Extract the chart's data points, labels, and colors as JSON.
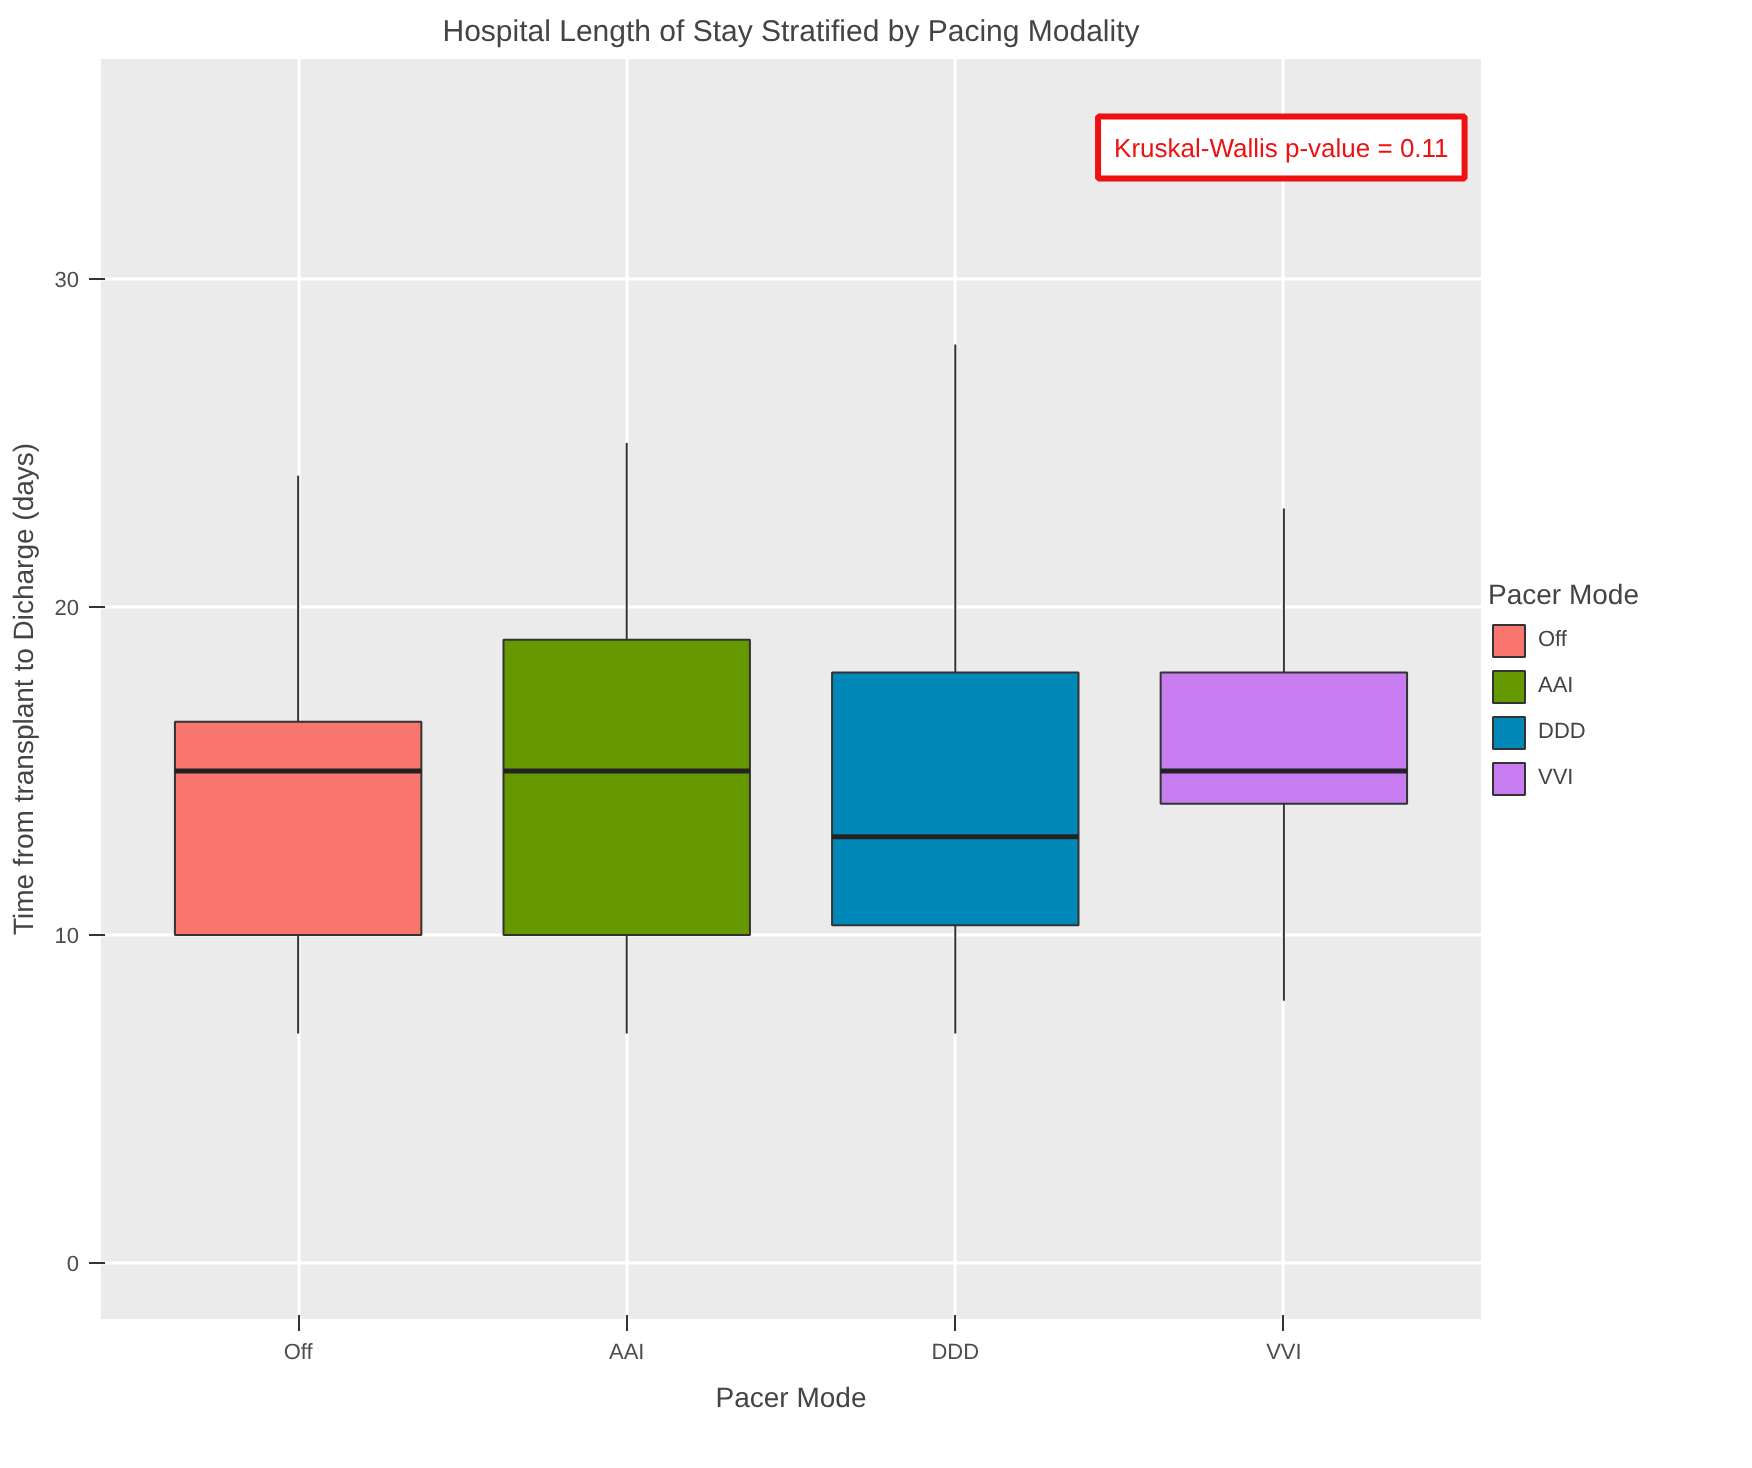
{
  "chart_data": {
    "type": "box",
    "title": "Hospital Length of Stay Stratified by Pacing Modality",
    "xlabel": "Pacer Mode",
    "ylabel": "Time from transplant to Dicharge (days)",
    "legend_title": "Pacer Mode",
    "categories": [
      "Off",
      "AAI",
      "DDD",
      "VVI"
    ],
    "series": [
      {
        "name": "Off",
        "color": "#f8766d",
        "boxes": [
          {
            "low": 7,
            "q1": 10,
            "median": 15,
            "q3": 16.5,
            "high": 24
          },
          null,
          null,
          null
        ]
      },
      {
        "name": "AAI",
        "color": "#669900",
        "boxes": [
          null,
          {
            "low": 7,
            "q1": 10,
            "median": 15,
            "q3": 19,
            "high": 25
          },
          null,
          null
        ]
      },
      {
        "name": "DDD",
        "color": "#0089b8",
        "boxes": [
          null,
          null,
          {
            "low": 7,
            "q1": 10.3,
            "median": 13,
            "q3": 18,
            "high": 28
          },
          null
        ]
      },
      {
        "name": "VVI",
        "color": "#c77cef",
        "boxes": [
          null,
          null,
          null,
          {
            "low": 8,
            "q1": 14,
            "median": 15,
            "q3": 18,
            "high": 23
          }
        ]
      }
    ],
    "ylim": [
      -1.7,
      36.7
    ],
    "yticks": [
      0,
      10,
      20,
      30
    ],
    "grid": true,
    "legend": "right",
    "annotations": [
      "Kruskal-Wallis p-value = 0.11"
    ]
  }
}
